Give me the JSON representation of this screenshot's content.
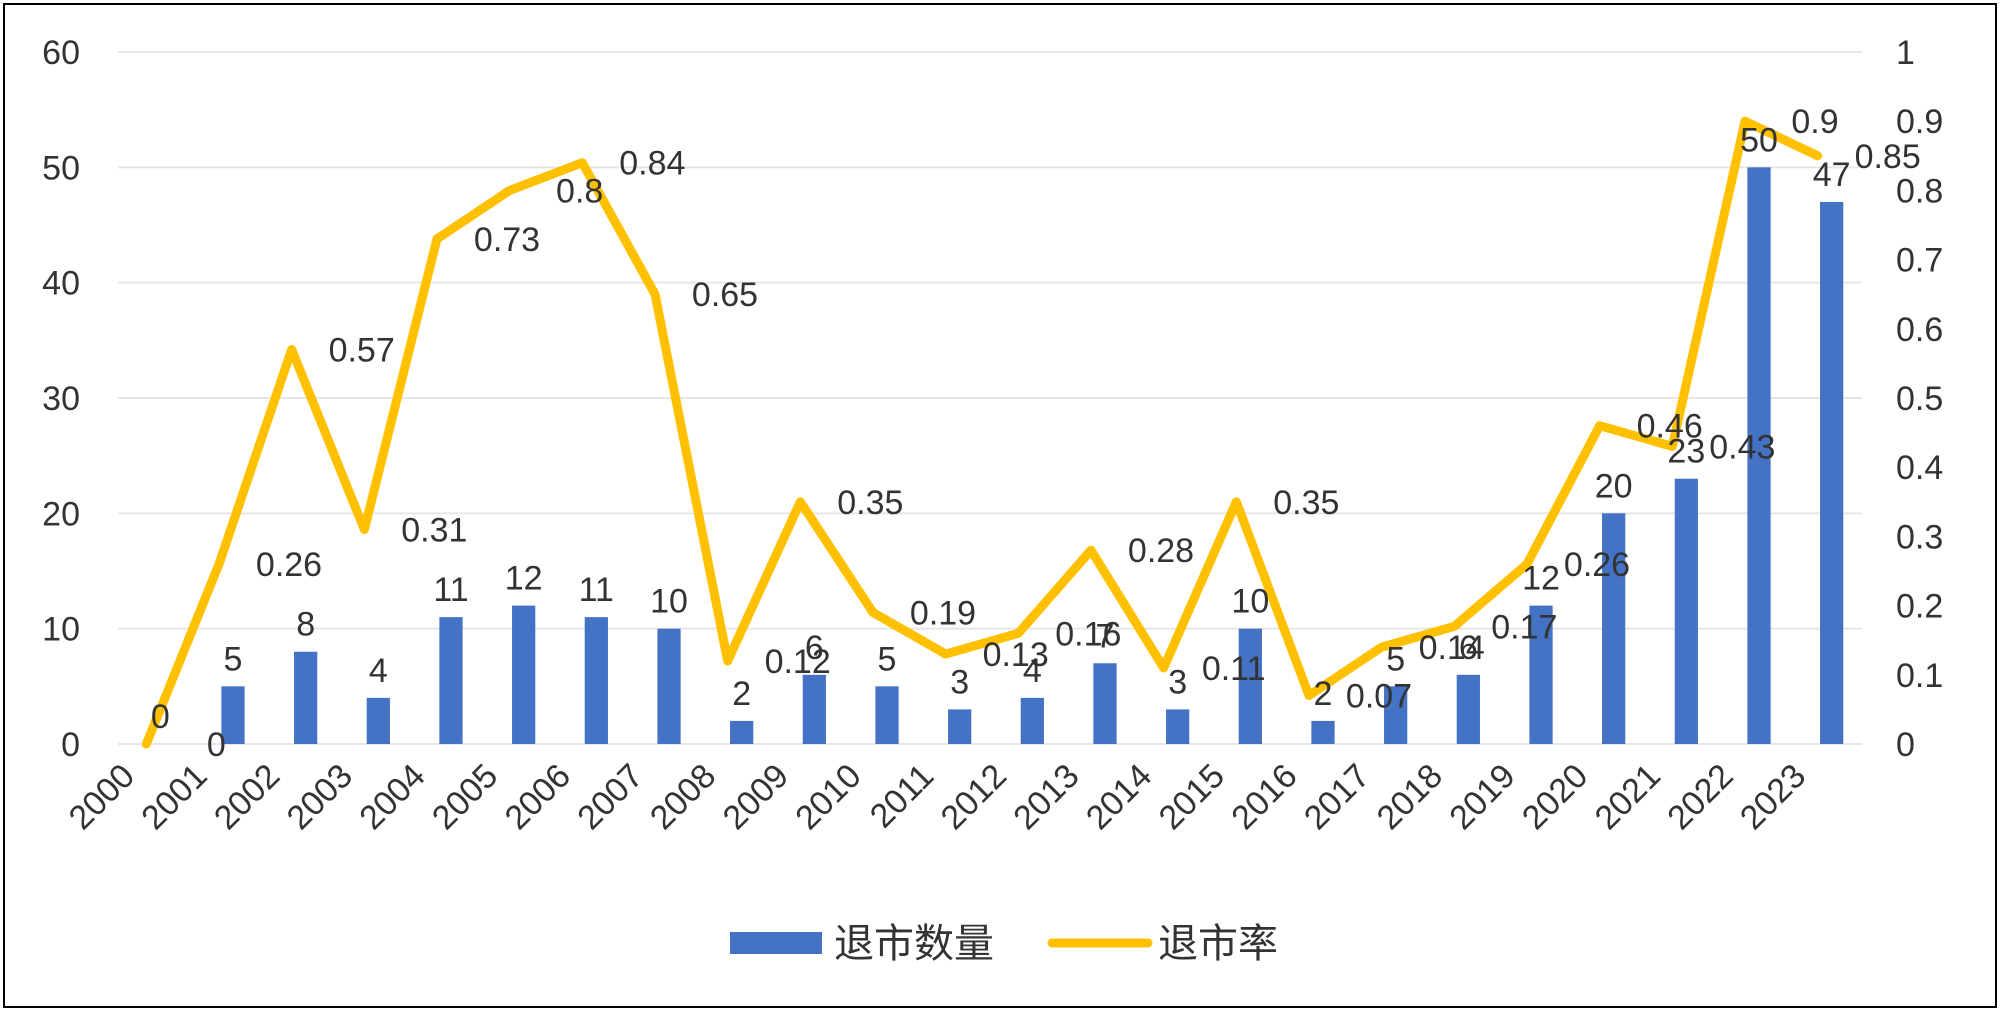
{
  "chart_data": {
    "type": "bar",
    "categories": [
      "2000",
      "2001",
      "2002",
      "2003",
      "2004",
      "2005",
      "2006",
      "2007",
      "2008",
      "2009",
      "2010",
      "2011",
      "2012",
      "2013",
      "2014",
      "2015",
      "2016",
      "2017",
      "2018",
      "2019",
      "2020",
      "2021",
      "2022",
      "2023"
    ],
    "series": [
      {
        "name": "退市数量",
        "type": "bar",
        "axis": "left",
        "values": [
          0,
          5,
          8,
          4,
          11,
          12,
          11,
          10,
          2,
          6,
          5,
          3,
          4,
          7,
          3,
          10,
          2,
          5,
          6,
          12,
          20,
          23,
          50,
          47
        ]
      },
      {
        "name": "退市率",
        "type": "line",
        "axis": "right",
        "values": [
          0,
          0.26,
          0.57,
          0.31,
          0.73,
          0.8,
          0.84,
          0.65,
          0.12,
          0.35,
          0.19,
          0.13,
          0.16,
          0.28,
          0.11,
          0.35,
          0.07,
          0.14,
          0.17,
          0.26,
          0.46,
          0.43,
          0.9,
          0.85
        ]
      }
    ],
    "ylim": [
      0,
      60
    ],
    "y_ticks": [
      "0",
      "10",
      "20",
      "30",
      "40",
      "50",
      "60"
    ],
    "y2lim": [
      0,
      1
    ],
    "y2_ticks": [
      "0",
      "0.1",
      "0.2",
      "0.3",
      "0.4",
      "0.5",
      "0.6",
      "0.7",
      "0.8",
      "0.9",
      "1"
    ],
    "grid": true,
    "legend_position": "bottom",
    "colors": {
      "bar": "#4472C4",
      "line": "#FFC000",
      "grid": "#E6E6E6"
    }
  }
}
